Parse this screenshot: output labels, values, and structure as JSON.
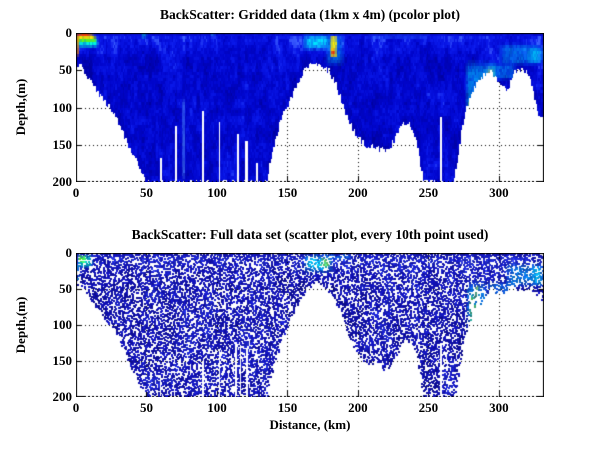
{
  "figure": {
    "background": "#ffffff",
    "axis_color": "#000000",
    "grid_style": "dotted",
    "colormap": "jet"
  },
  "chart_data": [
    {
      "type": "heatmap",
      "title": "BackScatter: Gridded data (1km x 4m) (pcolor plot)",
      "xlabel": "",
      "ylabel": "Depth,(m)",
      "xlim": [
        0,
        332
      ],
      "ylim": [
        200,
        0
      ],
      "y_axis_reversed": true,
      "xticks": [
        0,
        50,
        100,
        150,
        200,
        250,
        300
      ],
      "yticks": [
        0,
        50,
        100,
        150,
        200
      ],
      "grid": "on",
      "cell_size_note": "1km x 4m grid cells",
      "palette": {
        "deep": "#000096",
        "mid": "#0005cd",
        "light": "#0a19eb",
        "bright": "#3c5fff"
      },
      "seafloor_profile_km_depth": [
        [
          0,
          40
        ],
        [
          4,
          46
        ],
        [
          8,
          56
        ],
        [
          12,
          70
        ],
        [
          16,
          80
        ],
        [
          20,
          90
        ],
        [
          24,
          100
        ],
        [
          28,
          112
        ],
        [
          32,
          128
        ],
        [
          36,
          146
        ],
        [
          40,
          162
        ],
        [
          44,
          176
        ],
        [
          47,
          189
        ],
        [
          50,
          200
        ],
        [
          135,
          200
        ],
        [
          137,
          180
        ],
        [
          140,
          155
        ],
        [
          144,
          125
        ],
        [
          148,
          105
        ],
        [
          152,
          90
        ],
        [
          156,
          75
        ],
        [
          160,
          58
        ],
        [
          163,
          48
        ],
        [
          166,
          42
        ],
        [
          170,
          40
        ],
        [
          174,
          42
        ],
        [
          177,
          46
        ],
        [
          180,
          52
        ],
        [
          184,
          66
        ],
        [
          188,
          88
        ],
        [
          192,
          110
        ],
        [
          196,
          126
        ],
        [
          200,
          140
        ],
        [
          204,
          148
        ],
        [
          208,
          154
        ],
        [
          212,
          151
        ],
        [
          216,
          156
        ],
        [
          220,
          160
        ],
        [
          224,
          150
        ],
        [
          228,
          133
        ],
        [
          232,
          123
        ],
        [
          236,
          120
        ],
        [
          240,
          132
        ],
        [
          243,
          158
        ],
        [
          245,
          182
        ],
        [
          247,
          200
        ],
        [
          268,
          200
        ],
        [
          270,
          182
        ],
        [
          272,
          155
        ],
        [
          274,
          125
        ],
        [
          277,
          100
        ],
        [
          280,
          85
        ],
        [
          283,
          72
        ],
        [
          286,
          64
        ],
        [
          290,
          57
        ],
        [
          294,
          52
        ],
        [
          297,
          56
        ],
        [
          300,
          63
        ],
        [
          303,
          72
        ],
        [
          306,
          78
        ],
        [
          308,
          70
        ],
        [
          310,
          58
        ],
        [
          313,
          50
        ],
        [
          317,
          48
        ],
        [
          320,
          53
        ],
        [
          323,
          63
        ],
        [
          325,
          80
        ],
        [
          327,
          100
        ],
        [
          329,
          112
        ],
        [
          332,
          117
        ]
      ],
      "missing_columns": [
        {
          "km": 59.5,
          "from_depth": 168,
          "w_km": 1.2
        },
        {
          "km": 70.5,
          "from_depth": 125,
          "w_km": 1
        },
        {
          "km": 89.5,
          "from_depth": 105,
          "w_km": 1
        },
        {
          "km": 101.5,
          "from_depth": 120,
          "w_km": 1
        },
        {
          "km": 114.5,
          "from_depth": 135,
          "w_km": 1
        },
        {
          "km": 120,
          "from_depth": 145,
          "w_km": 1.8
        },
        {
          "km": 128,
          "from_depth": 175,
          "w_km": 1
        },
        {
          "km": 258.5,
          "from_depth": 113,
          "w_km": 1
        }
      ],
      "high_backscatter_features": [
        {
          "km": [
            0,
            16
          ],
          "depth": [
            7,
            20
          ],
          "color": "#00ffdd",
          "alpha": 0.85,
          "soft": [
            2,
            4
          ]
        },
        {
          "km": [
            0,
            15
          ],
          "depth": [
            4,
            13
          ],
          "color": "#66ff00",
          "alpha": 0.85,
          "soft": [
            2,
            3
          ]
        },
        {
          "km": [
            0,
            14
          ],
          "depth": [
            1,
            9
          ],
          "color": "#ffe100",
          "alpha": 0.9,
          "soft": [
            2.5,
            2.5
          ]
        },
        {
          "km": [
            0,
            11
          ],
          "depth": [
            0,
            6
          ],
          "color": "#ff3c00",
          "alpha": 0.9,
          "soft": [
            3,
            2
          ]
        },
        {
          "km": [
            0,
            2.5
          ],
          "depth": [
            0,
            34
          ],
          "color": "#ff8c00",
          "alpha": 0.8,
          "soft": [
            1.2,
            9
          ]
        },
        {
          "km": [
            46,
            51
          ],
          "depth": [
            0,
            7
          ],
          "color": "#00ffcc",
          "alpha": 0.5,
          "soft": [
            1.5,
            2.5
          ]
        },
        {
          "km": [
            95,
            99
          ],
          "depth": [
            0,
            5
          ],
          "color": "#33ddff",
          "alpha": 0.35,
          "soft": [
            1.2,
            2
          ]
        },
        {
          "km": [
            75,
            77.5
          ],
          "depth": [
            85,
            200
          ],
          "color": "#5599ff",
          "alpha": 0.5,
          "soft": [
            0.7,
            12
          ]
        },
        {
          "km": [
            160,
            181
          ],
          "depth": [
            0,
            24
          ],
          "color": "#00e4ff",
          "alpha": 0.8,
          "soft": [
            5,
            8
          ]
        },
        {
          "km": [
            176,
            191
          ],
          "depth": [
            0,
            45
          ],
          "color": "#00ccff",
          "alpha": 0.4,
          "soft": [
            4,
            10
          ]
        },
        {
          "km": [
            180,
            185.5
          ],
          "depth": [
            2,
            34
          ],
          "color": "#fff000",
          "alpha": 0.85,
          "soft": [
            1.2,
            5
          ]
        },
        {
          "km": [
            181,
            184
          ],
          "depth": [
            21,
            31
          ],
          "color": "#ee0f00",
          "alpha": 0.85,
          "soft": [
            0.8,
            3
          ]
        },
        {
          "km": [
            205,
            252
          ],
          "depth": [
            0,
            9
          ],
          "color": "#2a6bff",
          "alpha": 0.3,
          "soft": [
            8,
            3
          ]
        },
        {
          "km": [
            276,
            299
          ],
          "depth": [
            35,
            125
          ],
          "color": "#00e4ff",
          "alpha": 0.45,
          "soft": [
            2.5,
            15
          ]
        },
        {
          "km": [
            278,
            281.5
          ],
          "depth": [
            88,
            116
          ],
          "color": "#b4f000",
          "alpha": 0.7,
          "soft": [
            1,
            6
          ]
        },
        {
          "km": [
            291,
            297
          ],
          "depth": [
            44,
            90
          ],
          "color": "#ffe100",
          "alpha": 0.5,
          "soft": [
            1.5,
            8
          ]
        },
        {
          "km": [
            292,
            296
          ],
          "depth": [
            52,
            78
          ],
          "color": "#ff4600",
          "alpha": 0.85,
          "soft": [
            1,
            4
          ]
        },
        {
          "km": [
            291,
            313
          ],
          "depth": [
            40,
            63
          ],
          "color": "#00d8ff",
          "alpha": 0.35,
          "soft": [
            4,
            5
          ]
        },
        {
          "km": [
            299,
            332
          ],
          "depth": [
            13,
            44
          ],
          "color": "#00d8ff",
          "alpha": 0.4,
          "soft": [
            6,
            7
          ]
        },
        {
          "km": [
            320,
            332
          ],
          "depth": [
            18,
            42
          ],
          "color": "#00f0ff",
          "alpha": 0.5,
          "soft": [
            4,
            6
          ]
        }
      ]
    },
    {
      "type": "scatter",
      "title": "BackScatter: Full data set (scatter plot, every 10th point used)",
      "xlabel": "Distance, (km)",
      "ylabel": "Depth,(m)",
      "xlim": [
        0,
        332
      ],
      "ylim": [
        200,
        0
      ],
      "y_axis_reversed": true,
      "xticks": [
        0,
        50,
        100,
        150,
        200,
        250,
        300
      ],
      "yticks": [
        0,
        50,
        100,
        150,
        200
      ],
      "grid": "on",
      "marker_note": "every 10th point plotted, white gaps between dots",
      "palette": {
        "deep": "#0a0a8c",
        "mid": "#1212b9",
        "light": "#1e2ad2",
        "bright": "#3c46e6"
      },
      "seafloor_profile_km_depth": [
        [
          0,
          40
        ],
        [
          4,
          46
        ],
        [
          8,
          56
        ],
        [
          12,
          70
        ],
        [
          16,
          80
        ],
        [
          20,
          90
        ],
        [
          24,
          100
        ],
        [
          28,
          112
        ],
        [
          32,
          128
        ],
        [
          36,
          146
        ],
        [
          40,
          162
        ],
        [
          44,
          176
        ],
        [
          47,
          189
        ],
        [
          50,
          200
        ],
        [
          135,
          200
        ],
        [
          137,
          180
        ],
        [
          140,
          155
        ],
        [
          144,
          125
        ],
        [
          148,
          105
        ],
        [
          152,
          90
        ],
        [
          156,
          75
        ],
        [
          160,
          58
        ],
        [
          163,
          48
        ],
        [
          166,
          42
        ],
        [
          170,
          40
        ],
        [
          174,
          42
        ],
        [
          177,
          46
        ],
        [
          180,
          52
        ],
        [
          184,
          66
        ],
        [
          188,
          88
        ],
        [
          192,
          110
        ],
        [
          196,
          126
        ],
        [
          200,
          140
        ],
        [
          204,
          148
        ],
        [
          208,
          154
        ],
        [
          212,
          151
        ],
        [
          216,
          156
        ],
        [
          220,
          160
        ],
        [
          224,
          150
        ],
        [
          228,
          133
        ],
        [
          232,
          123
        ],
        [
          236,
          120
        ],
        [
          240,
          132
        ],
        [
          243,
          158
        ],
        [
          245,
          182
        ],
        [
          247,
          200
        ],
        [
          268,
          200
        ],
        [
          270,
          182
        ],
        [
          272,
          155
        ],
        [
          274,
          125
        ],
        [
          277,
          100
        ],
        [
          280,
          85
        ],
        [
          283,
          70
        ],
        [
          285,
          48
        ],
        [
          287,
          70
        ],
        [
          290,
          54
        ],
        [
          294,
          50
        ],
        [
          298,
          52
        ],
        [
          302,
          56
        ],
        [
          306,
          48
        ],
        [
          310,
          45
        ],
        [
          314,
          50
        ],
        [
          318,
          54
        ],
        [
          322,
          48
        ],
        [
          326,
          53
        ],
        [
          329,
          58
        ],
        [
          332,
          68
        ]
      ],
      "missing_columns": [
        {
          "km": 59.5,
          "from_depth": 170,
          "w_km": 1
        },
        {
          "km": 89.5,
          "from_depth": 150,
          "w_km": 1
        },
        {
          "km": 101.5,
          "from_depth": 135,
          "w_km": 1
        },
        {
          "km": 113,
          "from_depth": 130,
          "w_km": 1
        },
        {
          "km": 116,
          "from_depth": 128,
          "w_km": 1
        },
        {
          "km": 120.5,
          "from_depth": 132,
          "w_km": 1.5
        },
        {
          "km": 258.5,
          "from_depth": 125,
          "w_km": 0.8
        }
      ],
      "high_backscatter_features": [
        {
          "km": [
            0,
            12
          ],
          "depth": [
            0,
            20
          ],
          "color": "#00ffd0",
          "alpha": 0.75,
          "soft": [
            3,
            5
          ]
        },
        {
          "km": [
            0,
            7
          ],
          "depth": [
            1,
            13
          ],
          "color": "#70ff00",
          "alpha": 0.6,
          "soft": [
            2,
            3
          ]
        },
        {
          "km": [
            0,
            2.5
          ],
          "depth": [
            0,
            60
          ],
          "color": "#00e0ee",
          "alpha": 0.45,
          "soft": [
            1,
            12
          ]
        },
        {
          "km": [
            160,
            182
          ],
          "depth": [
            0,
            27
          ],
          "color": "#00e4ff",
          "alpha": 0.8,
          "soft": [
            5,
            9
          ]
        },
        {
          "km": [
            173,
            180
          ],
          "depth": [
            5,
            20
          ],
          "color": "#b4f000",
          "alpha": 0.55,
          "soft": [
            2,
            4
          ]
        },
        {
          "km": [
            176,
            196
          ],
          "depth": [
            0,
            9
          ],
          "color": "#00ccff",
          "alpha": 0.35,
          "soft": [
            4,
            3
          ]
        },
        {
          "km": [
            276,
            291
          ],
          "depth": [
            35,
            150
          ],
          "color": "#00e0ff",
          "alpha": 0.5,
          "soft": [
            2.5,
            18
          ]
        },
        {
          "km": [
            278,
            283
          ],
          "depth": [
            55,
            100
          ],
          "color": "#7bee00",
          "alpha": 0.5,
          "soft": [
            1.5,
            8
          ]
        },
        {
          "km": [
            282,
            286
          ],
          "depth": [
            42,
            66
          ],
          "color": "#c8f000",
          "alpha": 0.45,
          "soft": [
            1.2,
            5
          ]
        },
        {
          "km": [
            290,
            313
          ],
          "depth": [
            38,
            62
          ],
          "color": "#00d8ff",
          "alpha": 0.35,
          "soft": [
            4,
            5
          ]
        },
        {
          "km": [
            303,
            332
          ],
          "depth": [
            12,
            46
          ],
          "color": "#00d8ff",
          "alpha": 0.45,
          "soft": [
            6,
            7
          ]
        },
        {
          "km": [
            322,
            332
          ],
          "depth": [
            16,
            45
          ],
          "color": "#00f0ff",
          "alpha": 0.5,
          "soft": [
            4,
            6
          ]
        }
      ]
    }
  ]
}
